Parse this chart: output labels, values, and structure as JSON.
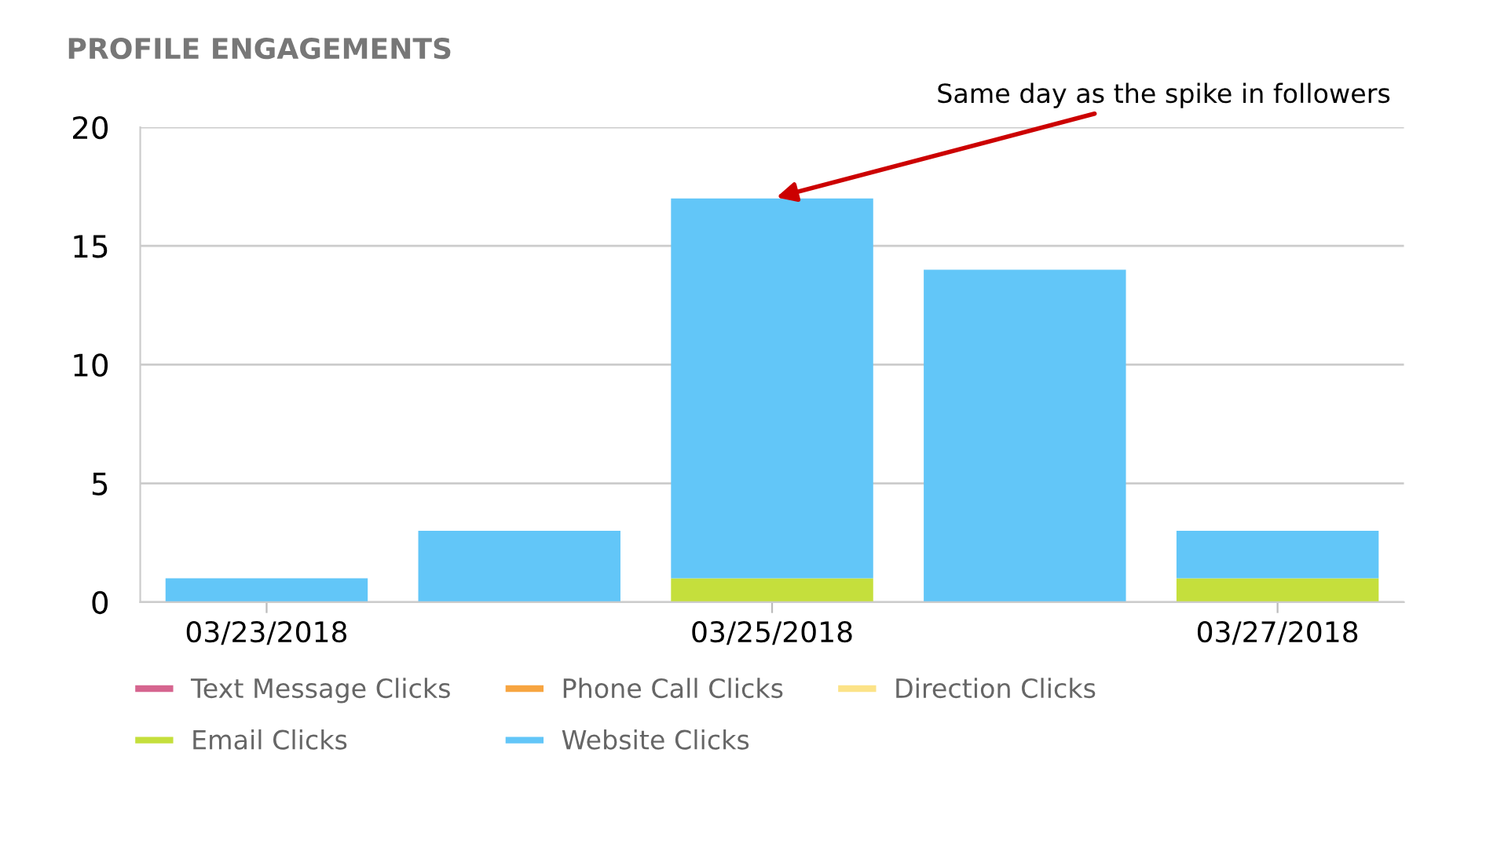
{
  "chart_data": {
    "type": "bar",
    "stacked": true,
    "title": "PROFILE ENGAGEMENTS",
    "categories": [
      "03/23/2018",
      null,
      "03/25/2018",
      null,
      "03/27/2018"
    ],
    "series": [
      {
        "name": "Text Message Clicks",
        "color": "#d6658f",
        "values": [
          0,
          0,
          0,
          0,
          0
        ]
      },
      {
        "name": "Phone Call Clicks",
        "color": "#f7a541",
        "values": [
          0,
          0,
          0,
          0,
          0
        ]
      },
      {
        "name": "Direction Clicks",
        "color": "#fce388",
        "values": [
          0,
          0,
          0,
          0,
          0
        ]
      },
      {
        "name": "Email Clicks",
        "color": "#c5df3c",
        "values": [
          0,
          0,
          1,
          0,
          1
        ]
      },
      {
        "name": "Website Clicks",
        "color": "#62c6f8",
        "values": [
          1,
          3,
          16,
          14,
          2
        ]
      }
    ],
    "ylim": [
      0,
      20
    ],
    "yticks": [
      0,
      5,
      10,
      15,
      20
    ],
    "grid": "y",
    "legend": "bottom",
    "annotations": [
      {
        "text": "Same day as the spike in followers",
        "x": "03/25/2018",
        "y": 17
      }
    ]
  }
}
